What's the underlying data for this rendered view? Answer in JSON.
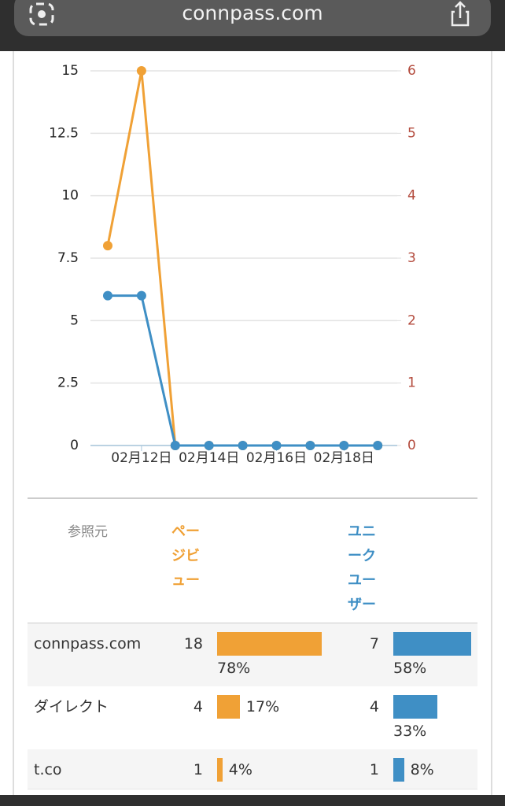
{
  "browser": {
    "url": "connpass.com"
  },
  "chart_data": {
    "type": "line",
    "categories": [
      null,
      "02月12日",
      null,
      "02月14日",
      null,
      "02月16日",
      null,
      "02月18日",
      null
    ],
    "series": [
      {
        "color": "#f0a136",
        "values": [
          8,
          15,
          0,
          0,
          0,
          0,
          0,
          0,
          0
        ]
      },
      {
        "color": "#3f8fc5",
        "values": [
          6,
          6,
          0,
          0,
          0,
          0,
          0,
          0,
          0
        ]
      }
    ],
    "ylim": [
      0,
      15
    ],
    "yticks": [
      0,
      2.5,
      5,
      7.5,
      10,
      12.5,
      15
    ],
    "y2lim": [
      0,
      6
    ],
    "y2ticks": [
      0,
      1,
      2,
      3,
      4,
      5,
      6
    ],
    "y2color": "#b34a3c",
    "grid": true
  },
  "table": {
    "headers": [
      "参照元",
      "ページビュー",
      "ユニークユーザー"
    ],
    "rows": [
      {
        "source": "connpass.com",
        "pv": 18,
        "pv_share": 78,
        "pv_share_label": "78%",
        "uu": 7,
        "uu_share": 58,
        "uu_share_label": "58%"
      },
      {
        "source": "ダイレクト",
        "pv": 4,
        "pv_share": 17,
        "pv_share_label": "17%",
        "uu": 4,
        "uu_share": 33,
        "uu_share_label": "33%"
      },
      {
        "source": "t.co",
        "pv": 1,
        "pv_share": 4,
        "pv_share_label": "4%",
        "uu": 1,
        "uu_share": 8,
        "uu_share_label": "8%"
      }
    ]
  }
}
